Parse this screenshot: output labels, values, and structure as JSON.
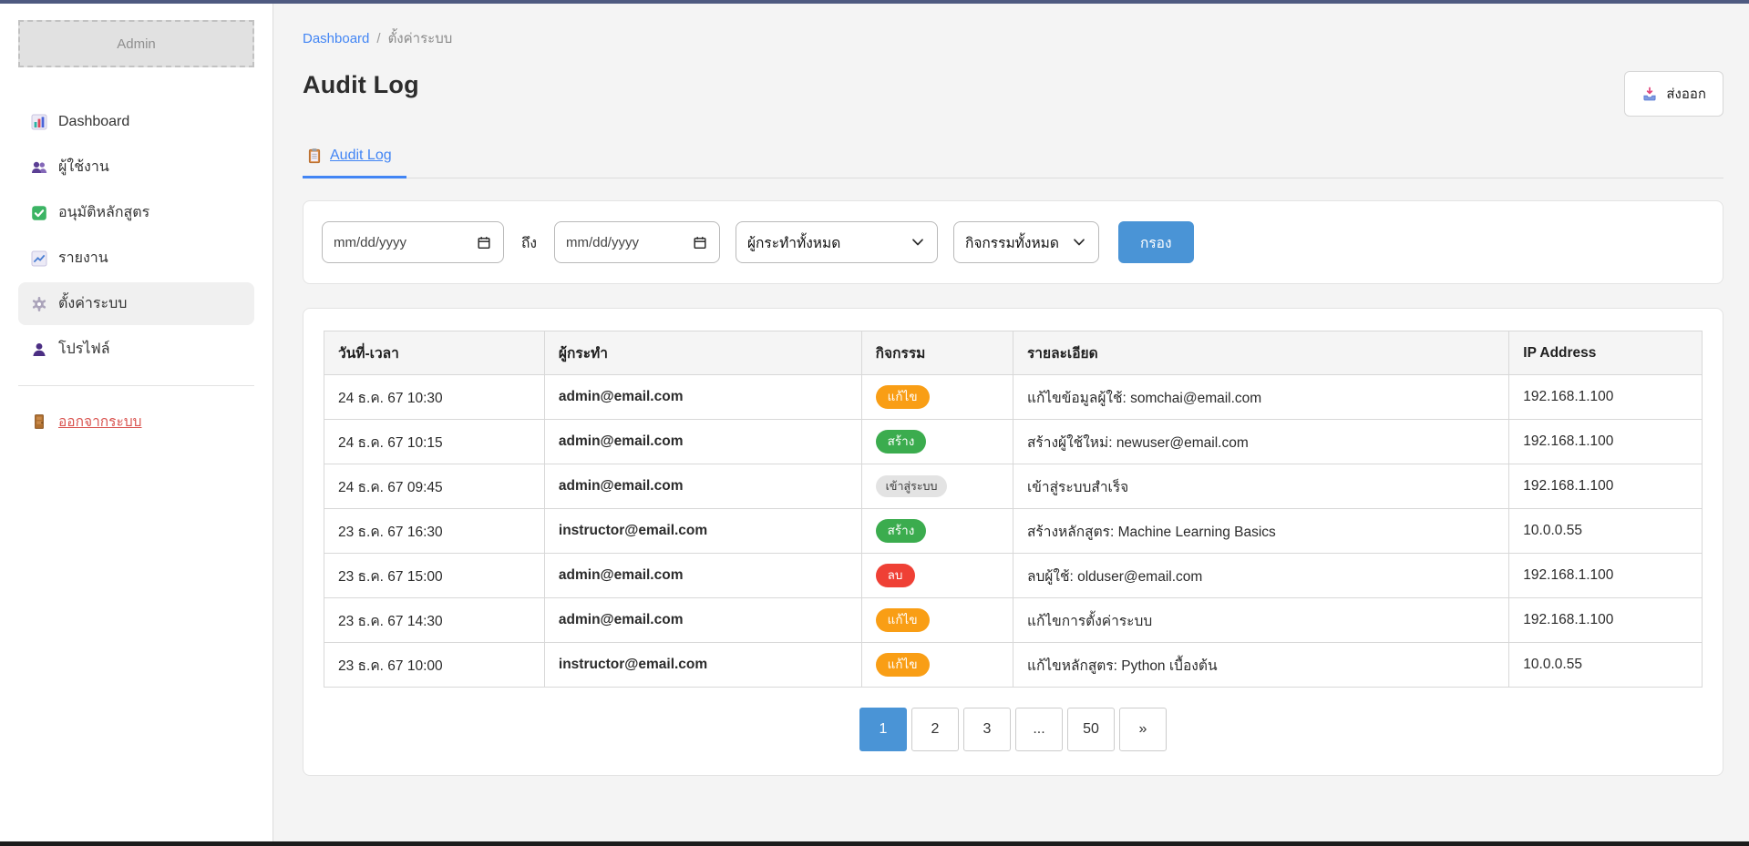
{
  "sidebar": {
    "brand": "Admin",
    "items": [
      {
        "key": "dashboard",
        "icon": "bar-chart-icon",
        "label": "Dashboard",
        "active": false
      },
      {
        "key": "users",
        "icon": "users-icon",
        "label": "ผู้ใช้งาน",
        "active": false
      },
      {
        "key": "course-approval",
        "icon": "check-icon",
        "label": "อนุมัติหลักสูตร",
        "active": false
      },
      {
        "key": "reports",
        "icon": "line-chart-icon",
        "label": "รายงาน",
        "active": false
      },
      {
        "key": "system-settings",
        "icon": "gear-icon",
        "label": "ตั้งค่าระบบ",
        "active": true
      },
      {
        "key": "profile",
        "icon": "person-icon",
        "label": "โปรไฟล์",
        "active": false
      }
    ],
    "logout": {
      "icon": "door-icon",
      "label": "ออกจากระบบ"
    }
  },
  "breadcrumb": {
    "home": "Dashboard",
    "separator": "/",
    "current": "ตั้งค่าระบบ"
  },
  "page": {
    "title": "Audit Log"
  },
  "toolbar": {
    "export_label": "ส่งออก",
    "export_icon": "download-tray-icon"
  },
  "tabs": [
    {
      "icon": "clipboard-icon",
      "label": "Audit Log",
      "active": true
    }
  ],
  "filters": {
    "date_from_value": "mm/dd/yyyy",
    "to_label": "ถึง",
    "date_to_value": "mm/dd/yyyy",
    "actor_selected": "ผู้กระทำทั้งหมด",
    "activity_selected": "กิจกรรมทั้งหมด",
    "filter_button_label": "กรอง"
  },
  "table": {
    "headers": [
      "วันที่-เวลา",
      "ผู้กระทำ",
      "กิจกรรม",
      "รายละเอียด",
      "IP Address"
    ],
    "rows": [
      {
        "datetime": "24 ธ.ค. 67 10:30",
        "actor": "admin@email.com",
        "action": "แก้ไข",
        "action_type": "edit",
        "detail": "แก้ไขข้อมูลผู้ใช้: somchai@email.com",
        "ip": "192.168.1.100"
      },
      {
        "datetime": "24 ธ.ค. 67 10:15",
        "actor": "admin@email.com",
        "action": "สร้าง",
        "action_type": "create",
        "detail": "สร้างผู้ใช้ใหม่: newuser@email.com",
        "ip": "192.168.1.100"
      },
      {
        "datetime": "24 ธ.ค. 67 09:45",
        "actor": "admin@email.com",
        "action": "เข้าสู่ระบบ",
        "action_type": "login",
        "detail": "เข้าสู่ระบบสำเร็จ",
        "ip": "192.168.1.100"
      },
      {
        "datetime": "23 ธ.ค. 67 16:30",
        "actor": "instructor@email.com",
        "action": "สร้าง",
        "action_type": "create",
        "detail": "สร้างหลักสูตร: Machine Learning Basics",
        "ip": "10.0.0.55"
      },
      {
        "datetime": "23 ธ.ค. 67 15:00",
        "actor": "admin@email.com",
        "action": "ลบ",
        "action_type": "delete",
        "detail": "ลบผู้ใช้: olduser@email.com",
        "ip": "192.168.1.100"
      },
      {
        "datetime": "23 ธ.ค. 67 14:30",
        "actor": "admin@email.com",
        "action": "แก้ไข",
        "action_type": "edit",
        "detail": "แก้ไขการตั้งค่าระบบ",
        "ip": "192.168.1.100"
      },
      {
        "datetime": "23 ธ.ค. 67 10:00",
        "actor": "instructor@email.com",
        "action": "แก้ไข",
        "action_type": "edit",
        "detail": "แก้ไขหลักสูตร: Python เบื้องต้น",
        "ip": "10.0.0.55"
      }
    ]
  },
  "pagination": {
    "pages": [
      "1",
      "2",
      "3",
      "...",
      "50",
      "»"
    ],
    "active": "1"
  },
  "colors": {
    "link_blue": "#4285f4",
    "primary_blue": "#4a94d6",
    "badge_edit": "#f99e15",
    "badge_create": "#3bac4e",
    "badge_delete": "#ef4035",
    "badge_login_bg": "#e3e3e3",
    "logout_red": "#d9534f",
    "topbar": "#4e5a80",
    "bottombar": "#1c1c1c"
  }
}
